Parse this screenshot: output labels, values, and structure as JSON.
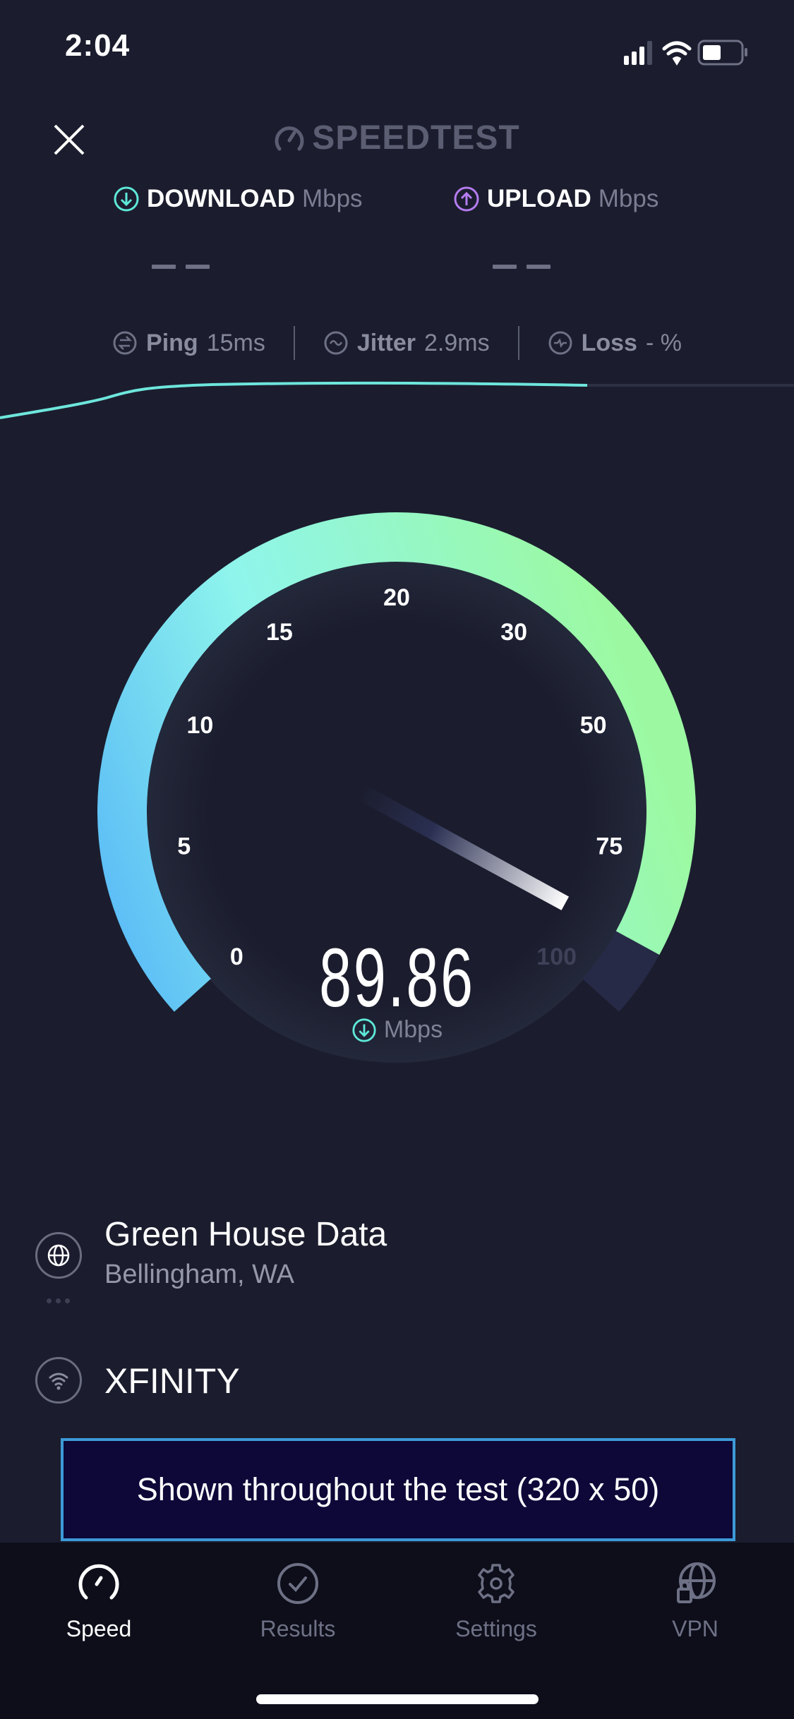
{
  "status_bar": {
    "time": "2:04",
    "icons": [
      "cellular-signal-icon",
      "wifi-icon",
      "battery-icon"
    ]
  },
  "header": {
    "logo_text": "SPEEDTEST",
    "close_icon": "close-icon"
  },
  "results": {
    "download": {
      "label": "DOWNLOAD",
      "unit": "Mbps",
      "value": "– –",
      "color": "#5ee8d8"
    },
    "upload": {
      "label": "UPLOAD",
      "unit": "Mbps",
      "value": "– –",
      "color": "#b57cf0"
    }
  },
  "stats": {
    "ping": {
      "label": "Ping",
      "value": "15",
      "unit": "ms"
    },
    "jitter": {
      "label": "Jitter",
      "value": "2.9",
      "unit": "ms"
    },
    "loss": {
      "label": "Loss",
      "value": "-",
      "unit": "%"
    }
  },
  "gauge": {
    "ticks": [
      "0",
      "5",
      "10",
      "15",
      "20",
      "30",
      "50",
      "75",
      "100"
    ],
    "value": 89.86,
    "value_text": "89.86",
    "unit": "Mbps",
    "colors": {
      "start": "#52b3f8",
      "mid": "#8ff5ec",
      "end": "#9cf9a2",
      "track": "#262a47"
    }
  },
  "server": {
    "name": "Green House Data",
    "location": "Bellingham, WA"
  },
  "isp": {
    "name": "XFINITY"
  },
  "ad": {
    "text": "Shown throughout the test (320 x 50)"
  },
  "tabs": [
    {
      "label": "Speed",
      "icon": "speedometer-icon",
      "active": true
    },
    {
      "label": "Results",
      "icon": "checkmark-circle-icon",
      "active": false
    },
    {
      "label": "Settings",
      "icon": "gear-icon",
      "active": false
    },
    {
      "label": "VPN",
      "icon": "globe-lock-icon",
      "active": false
    }
  ]
}
